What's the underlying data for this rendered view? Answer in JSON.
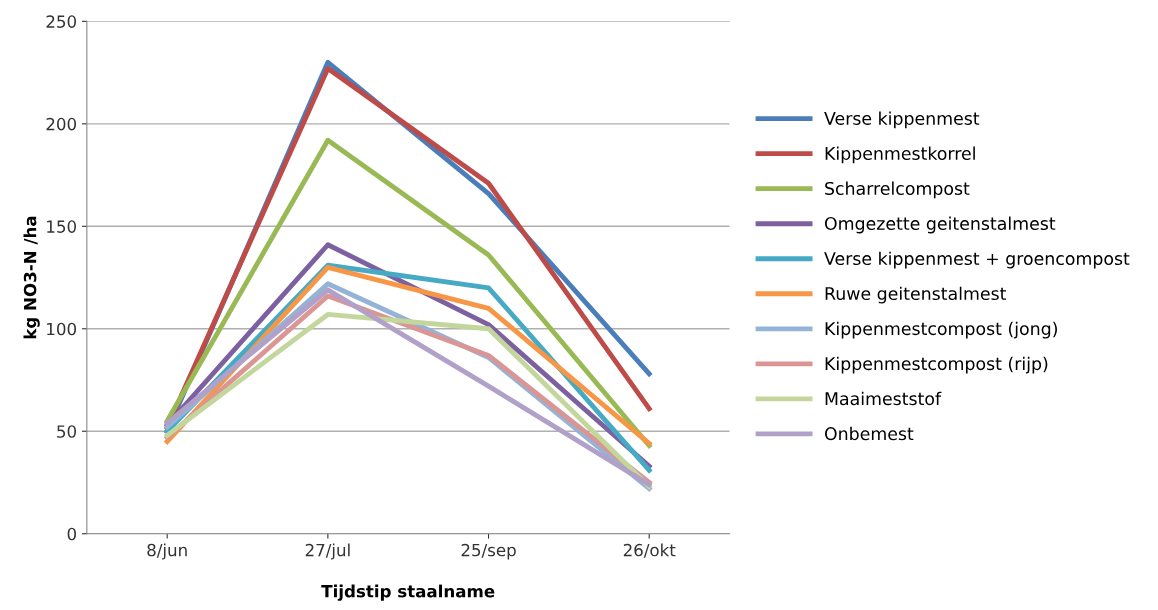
{
  "chart_data": {
    "type": "line",
    "xlabel": "Tijdstip staalname",
    "ylabel": "kg NO3-N /ha",
    "categories": [
      "8/jun",
      "27/jul",
      "25/sep",
      "26/okt"
    ],
    "ylim": [
      0,
      250
    ],
    "yticks": [
      0,
      50,
      100,
      150,
      200,
      250
    ],
    "grid": "y",
    "legend": "right",
    "marker": "none",
    "line_style": "solid",
    "series": [
      {
        "name": "Verse kippenmest",
        "color": "#4a7ebb",
        "values": [
          50,
          230,
          166,
          78
        ]
      },
      {
        "name": "Kippenmestkorrel",
        "color": "#be4b48",
        "values": [
          52,
          227,
          171,
          61
        ]
      },
      {
        "name": "Scharrelcompost",
        "color": "#98b954",
        "values": [
          55,
          192,
          136,
          43
        ]
      },
      {
        "name": "Omgezette geitenstalmest",
        "color": "#7d60a0",
        "values": [
          53,
          141,
          102,
          33
        ]
      },
      {
        "name": "Verse kippenmest + groencompost",
        "color": "#46aac5",
        "values": [
          50,
          131,
          120,
          31
        ]
      },
      {
        "name": "Ruwe geitenstalmest",
        "color": "#f79646",
        "values": [
          45,
          130,
          110,
          44
        ]
      },
      {
        "name": "Kippenmestcompost (jong)",
        "color": "#95b3d7",
        "values": [
          52,
          122,
          86,
          22
        ]
      },
      {
        "name": "Kippenmestcompost (rijp)",
        "color": "#da9694",
        "values": [
          47,
          116,
          87,
          25
        ]
      },
      {
        "name": "Maaimeststof",
        "color": "#c3d69b",
        "values": [
          48,
          107,
          100,
          23
        ]
      },
      {
        "name": "Onbemest",
        "color": "#b1a0c7",
        "values": [
          54,
          119,
          72,
          24
        ]
      }
    ]
  }
}
